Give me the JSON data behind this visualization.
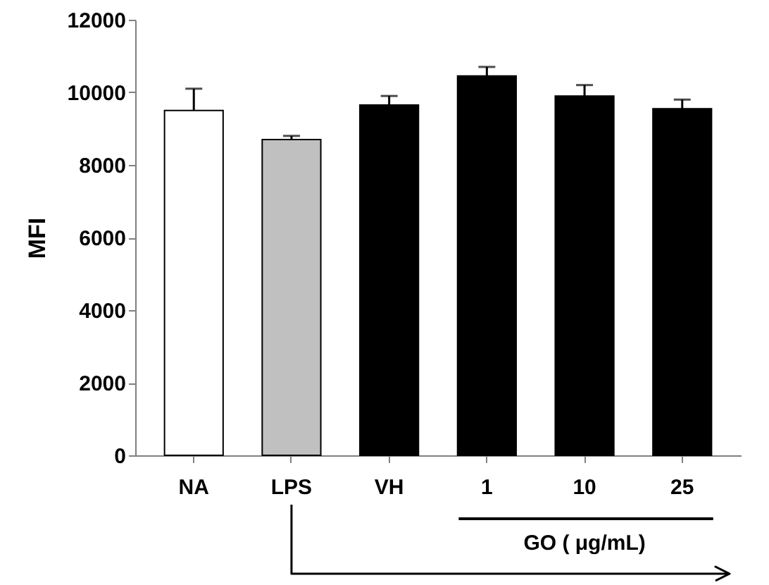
{
  "chart_data": {
    "type": "bar",
    "ylabel": "MFI",
    "categories": [
      "NA",
      "LPS",
      "VH",
      "1",
      "10",
      "25"
    ],
    "values": [
      9500,
      8700,
      9650,
      10450,
      9900,
      9550
    ],
    "colors": [
      "#ffffff",
      "#c0c0c0",
      "#000000",
      "#000000",
      "#000000",
      "#000000"
    ],
    "errors": [
      [
        9500,
        10100
      ],
      [
        8700,
        8800
      ],
      [
        9650,
        9900
      ],
      [
        10450,
        10700
      ],
      [
        9900,
        10200
      ],
      [
        9550,
        9800
      ]
    ],
    "ylim": [
      0,
      12000
    ],
    "yticks": [
      0,
      2000,
      4000,
      6000,
      8000,
      10000,
      12000
    ],
    "annotations": [
      "GO ( μg/mL)"
    ],
    "grid": false
  }
}
